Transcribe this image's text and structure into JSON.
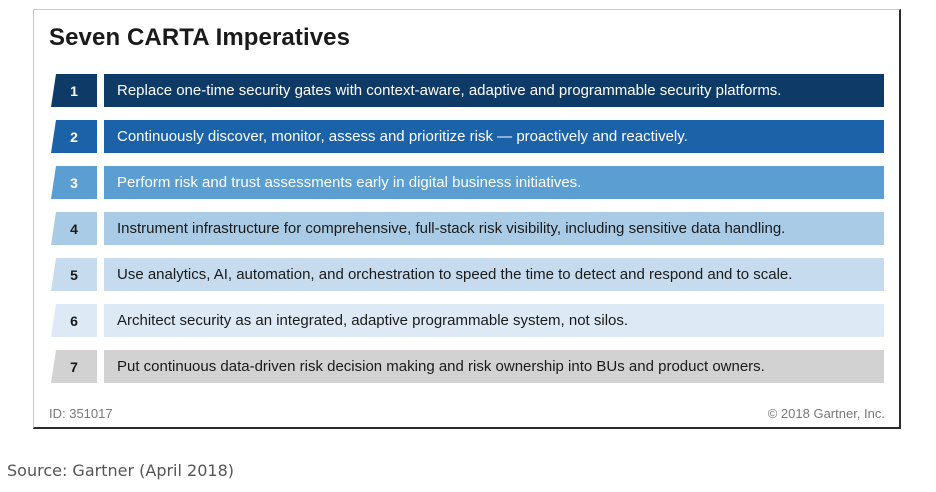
{
  "title": "Seven CARTA Imperatives",
  "imperatives": [
    {
      "number": "1",
      "text": "Replace one-time security gates with context-aware, adaptive and programmable security platforms.",
      "color": "#0d3a66",
      "text_color": "#ffffff"
    },
    {
      "number": "2",
      "text": "Continuously discover, monitor, assess and prioritize risk — proactively and reactively.",
      "color": "#1b62a8",
      "text_color": "#ffffff"
    },
    {
      "number": "3",
      "text": "Perform risk and trust assessments early in digital business initiatives.",
      "color": "#5b9ed2",
      "text_color": "#ffffff"
    },
    {
      "number": "4",
      "text": "Instrument infrastructure for comprehensive, full-stack risk visibility, including sensitive data handling.",
      "color": "#a9cbe6",
      "text_color": "#1a1a1a"
    },
    {
      "number": "5",
      "text": "Use analytics, AI, automation, and orchestration to speed the time to detect and respond and to scale.",
      "color": "#c6dcee",
      "text_color": "#1a1a1a"
    },
    {
      "number": "6",
      "text": "Architect security as an integrated, adaptive programmable system, not silos.",
      "color": "#ddeaf5",
      "text_color": "#1a1a1a"
    },
    {
      "number": "7",
      "text": "Put continuous data-driven risk decision making and risk ownership into BUs and product owners.",
      "color": "#d2d2d2",
      "text_color": "#1a1a1a"
    }
  ],
  "footer": {
    "id_label": "ID: 351017",
    "copyright": "© 2018 Gartner, Inc."
  },
  "source": "Source: Gartner (April 2018)"
}
